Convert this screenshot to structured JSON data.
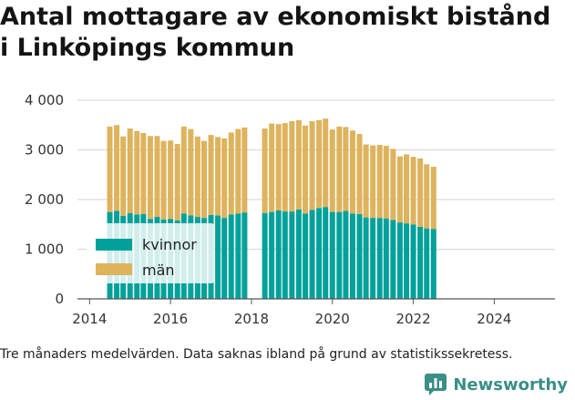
{
  "title_line1": "Antal mottagare av ekonomiskt bistånd",
  "title_line2": "i Linköpings kommun",
  "footnote": "Tre månaders medelvärden. Data saknas ibland på grund av statistikssekretess.",
  "brand": {
    "name": "Newsworthy",
    "icon": "bar-chart-logo-icon",
    "color": "#3a8f87"
  },
  "chart_data": {
    "type": "bar",
    "stacked": true,
    "ylim": [
      0,
      4000
    ],
    "y_ticks": [
      0,
      1000,
      2000,
      3000,
      4000
    ],
    "y_tick_labels": [
      "0",
      "1 000",
      "2 000",
      "3 000",
      "4 000"
    ],
    "x_ticks": [
      2014,
      2016,
      2018,
      2020,
      2022,
      2024
    ],
    "x_tick_labels": [
      "2014",
      "2016",
      "2018",
      "2020",
      "2022",
      "2024"
    ],
    "xlim": [
      2013.7,
      2025.5
    ],
    "grid": "horizontal",
    "legend_position": "bottom-left",
    "x": [
      2014.5,
      2014.67,
      2014.83,
      2015.0,
      2015.17,
      2015.33,
      2015.5,
      2015.67,
      2015.83,
      2016.0,
      2016.17,
      2016.33,
      2016.5,
      2016.67,
      2016.83,
      2017.0,
      2017.17,
      2017.33,
      2017.5,
      2017.67,
      2017.83,
      2018.33,
      2018.5,
      2018.67,
      2018.83,
      2019.0,
      2019.17,
      2019.33,
      2019.5,
      2019.67,
      2019.83,
      2020.0,
      2020.17,
      2020.33,
      2020.5,
      2020.67,
      2020.83,
      2021.0,
      2021.17,
      2021.33,
      2021.5,
      2021.67,
      2021.83,
      2022.0,
      2022.17,
      2022.33,
      2022.5,
      2022.67,
      2022.83,
      2023.0,
      2023.17,
      2023.33,
      2023.5,
      2023.67,
      2023.83,
      2024.0,
      2024.17,
      2024.33,
      2024.5,
      2024.67,
      2024.83
    ],
    "series": [
      {
        "name": "kvinnor",
        "color": "#00a19a",
        "values": [
          1750,
          1770,
          1670,
          1730,
          1700,
          1710,
          1610,
          1650,
          1600,
          1610,
          1580,
          1720,
          1680,
          1650,
          1630,
          1690,
          1680,
          1630,
          1700,
          1720,
          1740,
          1730,
          1750,
          1780,
          1760,
          1760,
          1800,
          1720,
          1790,
          1830,
          1850,
          1750,
          1750,
          1770,
          1720,
          1710,
          1640,
          1630,
          1630,
          1620,
          1590,
          1540,
          1520,
          1500,
          1450,
          1420,
          1410,
          0,
          0,
          0,
          0,
          0,
          0,
          0,
          0,
          0,
          0,
          0,
          0,
          0,
          0
        ]
      },
      {
        "name": "män",
        "color": "#deb35d",
        "values": [
          1720,
          1730,
          1600,
          1700,
          1680,
          1630,
          1670,
          1630,
          1580,
          1580,
          1540,
          1750,
          1740,
          1620,
          1550,
          1610,
          1580,
          1600,
          1650,
          1700,
          1710,
          1700,
          1780,
          1740,
          1780,
          1820,
          1800,
          1770,
          1790,
          1770,
          1780,
          1660,
          1720,
          1690,
          1670,
          1610,
          1470,
          1460,
          1470,
          1460,
          1430,
          1330,
          1390,
          1360,
          1380,
          1290,
          1250,
          0,
          0,
          0,
          0,
          0,
          0,
          0,
          0,
          0,
          0,
          0,
          0,
          0,
          0
        ]
      }
    ]
  }
}
